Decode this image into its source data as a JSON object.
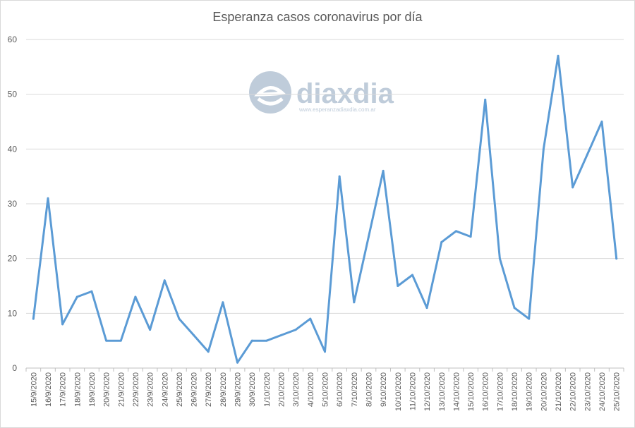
{
  "chart_data": {
    "type": "line",
    "title": "Esperanza casos coronavirus por día",
    "xlabel": "",
    "ylabel": "",
    "ylim": [
      0,
      60
    ],
    "yticks": [
      0,
      10,
      20,
      30,
      40,
      50,
      60
    ],
    "grid": true,
    "legend": "none",
    "line_color": "#5b9bd5",
    "categories": [
      "15/9/2020",
      "16/9/2020",
      "17/9/2020",
      "18/9/2020",
      "19/9/2020",
      "20/9/2020",
      "21/9/2020",
      "22/9/2020",
      "23/9/2020",
      "24/9/2020",
      "25/9/2020",
      "26/9/2020",
      "27/9/2020",
      "28/9/2020",
      "29/9/2020",
      "30/9/2020",
      "1/10/2020",
      "2/10/2020",
      "3/10/2020",
      "4/10/2020",
      "5/10/2020",
      "6/10/2020",
      "7/10/2020",
      "8/10/2020",
      "9/10/2020",
      "10/10/2020",
      "11/10/2020",
      "12/10/2020",
      "13/10/2020",
      "14/10/2020",
      "15/10/2020",
      "16/10/2020",
      "17/10/2020",
      "18/10/2020",
      "19/10/2020",
      "20/10/2020",
      "21/10/2020",
      "22/10/2020",
      "23/10/2020",
      "24/10/2020",
      "25/10/2020"
    ],
    "values": [
      9,
      31,
      8,
      13,
      14,
      5,
      5,
      13,
      7,
      16,
      9,
      6,
      3,
      12,
      1,
      5,
      5,
      6,
      7,
      9,
      3,
      35,
      12,
      24,
      36,
      15,
      17,
      11,
      23,
      25,
      24,
      49,
      20,
      11,
      9,
      40,
      57,
      33,
      39,
      45,
      20
    ]
  },
  "watermark": {
    "brand": "diaxdia",
    "url": "www.esperanzadiaxdia.com.ar",
    "color": "#b9c7d6"
  }
}
